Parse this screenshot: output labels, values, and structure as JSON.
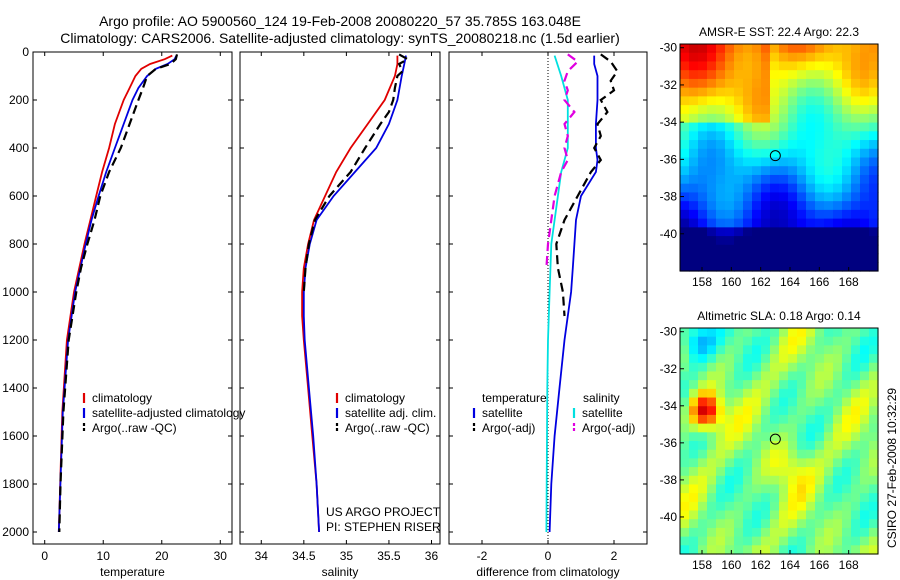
{
  "header": {
    "line1": "Argo profile: AO 5900560_124 19-Feb-2008 20080220_57 35.785S 163.048E",
    "line2": "Climatology: CARS2006. Satellite-adjusted climatology: synTS_20080218.nc (1.5d earlier)"
  },
  "side_text": "CSIRO 27-Feb-2008 10:32:29",
  "colors": {
    "climatology": "#e00000",
    "satellite": "#0000e0",
    "argo": "#000000",
    "temp_satellite": "#0000e0",
    "sal_satellite": "#00e0e0",
    "sal_argo": "#e000e0"
  },
  "chart_data": [
    {
      "type": "line",
      "panel": "temperature",
      "xlabel": "temperature",
      "ylabel": "",
      "xlim": [
        -2,
        32
      ],
      "ylim": [
        2050,
        0
      ],
      "xticks": [
        0,
        10,
        20,
        30
      ],
      "yticks": [
        0,
        200,
        400,
        600,
        800,
        1000,
        1200,
        1400,
        1600,
        1800,
        2000
      ],
      "legend": [
        "climatology",
        "satellite-adjusted climatology",
        "Argo(..raw -QC)"
      ],
      "series": [
        {
          "name": "climatology",
          "color": "climatology",
          "dash": false,
          "y": [
            15,
            30,
            50,
            70,
            100,
            150,
            200,
            300,
            400,
            500,
            600,
            700,
            800,
            1000,
            1200,
            1500,
            2000
          ],
          "x": [
            21.8,
            20.5,
            18.0,
            16.5,
            15.5,
            14.5,
            13.5,
            12.0,
            11.0,
            9.8,
            8.8,
            7.8,
            6.8,
            5.0,
            3.8,
            3.0,
            2.4
          ]
        },
        {
          "name": "satellite-adjusted climatology",
          "color": "satellite",
          "dash": false,
          "y": [
            15,
            30,
            50,
            70,
            100,
            150,
            200,
            300,
            400,
            500,
            600,
            700,
            800,
            1000,
            1200,
            1500,
            2000
          ],
          "x": [
            22.5,
            22.2,
            21.0,
            19.0,
            17.5,
            16.0,
            15.0,
            13.5,
            12.0,
            10.5,
            9.2,
            8.0,
            7.0,
            5.2,
            4.0,
            3.1,
            2.4
          ]
        },
        {
          "name": "Argo(..raw -QC)",
          "color": "argo",
          "dash": true,
          "y": [
            10,
            30,
            50,
            70,
            100,
            150,
            200,
            300,
            400,
            500,
            600,
            700,
            800,
            900,
            1000,
            1200,
            1500,
            1800,
            2000
          ],
          "x": [
            22.6,
            22.4,
            21.5,
            19.0,
            17.5,
            16.8,
            16.0,
            14.5,
            13.0,
            11.0,
            9.5,
            8.5,
            7.3,
            6.2,
            5.4,
            4.1,
            3.2,
            2.7,
            2.5
          ]
        }
      ]
    },
    {
      "type": "line",
      "panel": "salinity",
      "xlabel": "salinity",
      "ylabel": "",
      "xlim": [
        33.75,
        36.1
      ],
      "ylim": [
        2050,
        0
      ],
      "xticks": [
        34,
        34.5,
        35,
        35.5,
        36
      ],
      "legend": [
        "climatology",
        "satellite adj. clim.",
        "Argo(..raw -QC)"
      ],
      "annotation": [
        "US ARGO PROJECT",
        "PI: STEPHEN RISER"
      ],
      "series": [
        {
          "name": "climatology",
          "color": "climatology",
          "dash": false,
          "y": [
            15,
            50,
            100,
            200,
            300,
            400,
            500,
            600,
            700,
            800,
            900,
            1000,
            1100,
            1200,
            1400,
            1600,
            1800,
            2000
          ],
          "x": [
            35.6,
            35.6,
            35.57,
            35.45,
            35.25,
            35.05,
            34.88,
            34.75,
            34.62,
            34.55,
            34.5,
            34.48,
            34.48,
            34.5,
            34.55,
            34.6,
            34.65,
            34.68
          ]
        },
        {
          "name": "satellite adj. clim.",
          "color": "satellite",
          "dash": false,
          "y": [
            15,
            50,
            100,
            200,
            300,
            400,
            500,
            600,
            700,
            800,
            900,
            1000,
            1100,
            1200,
            1400,
            1600,
            1800,
            2000
          ],
          "x": [
            35.7,
            35.68,
            35.65,
            35.6,
            35.5,
            35.35,
            35.1,
            34.85,
            34.65,
            34.57,
            34.52,
            34.5,
            34.5,
            34.51,
            34.56,
            34.61,
            34.65,
            34.68
          ]
        },
        {
          "name": "Argo(..raw -QC)",
          "color": "argo",
          "dash": true,
          "y": [
            10,
            30,
            50,
            80,
            100,
            150,
            200,
            250,
            300,
            400,
            500,
            600,
            700,
            800,
            900,
            1000
          ],
          "x": [
            35.62,
            35.72,
            35.62,
            35.66,
            35.6,
            35.57,
            35.55,
            35.5,
            35.4,
            35.22,
            35.05,
            34.8,
            34.63,
            34.56,
            34.52,
            34.5
          ]
        }
      ]
    },
    {
      "type": "line",
      "panel": "difference",
      "xlabel": "difference from climatology",
      "ylabel": "",
      "xlim": [
        -3,
        3
      ],
      "ylim": [
        2050,
        0
      ],
      "xticks": [
        -2,
        0,
        2
      ],
      "legend_left_title": "temperature",
      "legend_right_title": "salinity",
      "legend_left": [
        "satellite",
        "Argo(-adj)"
      ],
      "legend_right": [
        "satellite",
        "Argo(-adj)"
      ],
      "series": [
        {
          "name": "satellite",
          "group": "temperature",
          "color": "temp_satellite",
          "dash": false,
          "y": [
            15,
            50,
            100,
            150,
            200,
            300,
            400,
            450,
            500,
            600,
            700,
            800,
            900,
            1000,
            1200,
            1400,
            1600,
            1800,
            2000
          ],
          "x": [
            1.4,
            1.4,
            1.5,
            1.5,
            1.5,
            1.45,
            1.45,
            1.5,
            1.45,
            1.0,
            0.85,
            0.8,
            0.75,
            0.7,
            0.5,
            0.35,
            0.2,
            0.1,
            0.05
          ]
        },
        {
          "name": "Argo(-adj)",
          "group": "temperature",
          "color": "argo",
          "dash": true,
          "y": [
            10,
            40,
            80,
            120,
            160,
            200,
            250,
            300,
            350,
            400,
            450,
            500,
            600,
            700,
            800,
            900,
            1000,
            1100
          ],
          "x": [
            1.6,
            1.9,
            2.1,
            1.9,
            2.0,
            1.6,
            1.8,
            1.5,
            1.6,
            1.4,
            1.6,
            1.3,
            0.9,
            0.5,
            0.25,
            0.3,
            0.45,
            0.5
          ]
        },
        {
          "name": "satellite",
          "group": "salinity",
          "color": "sal_satellite",
          "dash": false,
          "y": [
            15,
            100,
            200,
            300,
            400,
            500,
            600,
            700,
            800,
            1000,
            1200,
            1400,
            1600,
            1800,
            2000
          ],
          "x": [
            0.2,
            0.4,
            0.6,
            0.6,
            0.6,
            0.4,
            0.3,
            0.2,
            0.1,
            0.05,
            0.0,
            -0.02,
            -0.03,
            -0.04,
            -0.05
          ]
        },
        {
          "name": "Argo(-adj)",
          "group": "salinity",
          "color": "sal_argo",
          "dash": true,
          "y": [
            10,
            40,
            80,
            120,
            160,
            200,
            250,
            300,
            350,
            400,
            450,
            500,
            600,
            700,
            800,
            900
          ],
          "x": [
            0.6,
            0.9,
            0.6,
            0.5,
            0.6,
            0.5,
            0.8,
            0.5,
            0.6,
            0.5,
            0.6,
            0.4,
            0.2,
            0.1,
            0.0,
            -0.05
          ]
        }
      ]
    },
    {
      "type": "heatmap",
      "panel": "sst",
      "title": "AMSR-E SST: 22.4 Argo: 22.3",
      "xlim": [
        156.5,
        170
      ],
      "ylim": [
        -42,
        -29.8
      ],
      "xticks": [
        158,
        160,
        162,
        164,
        166,
        168
      ],
      "yticks": [
        -30,
        -32,
        -34,
        -36,
        -38,
        -40
      ],
      "profile_marker": {
        "x": 163.0,
        "y": -35.8
      }
    },
    {
      "type": "heatmap",
      "panel": "sla",
      "title": "Altimetric SLA: 0.18 Argo: 0.14",
      "xlim": [
        156.5,
        170
      ],
      "ylim": [
        -42,
        -29.8
      ],
      "xticks": [
        158,
        160,
        162,
        164,
        166,
        168
      ],
      "yticks": [
        -30,
        -32,
        -34,
        -36,
        -38,
        -40
      ],
      "profile_marker": {
        "x": 163.0,
        "y": -35.8
      }
    }
  ]
}
